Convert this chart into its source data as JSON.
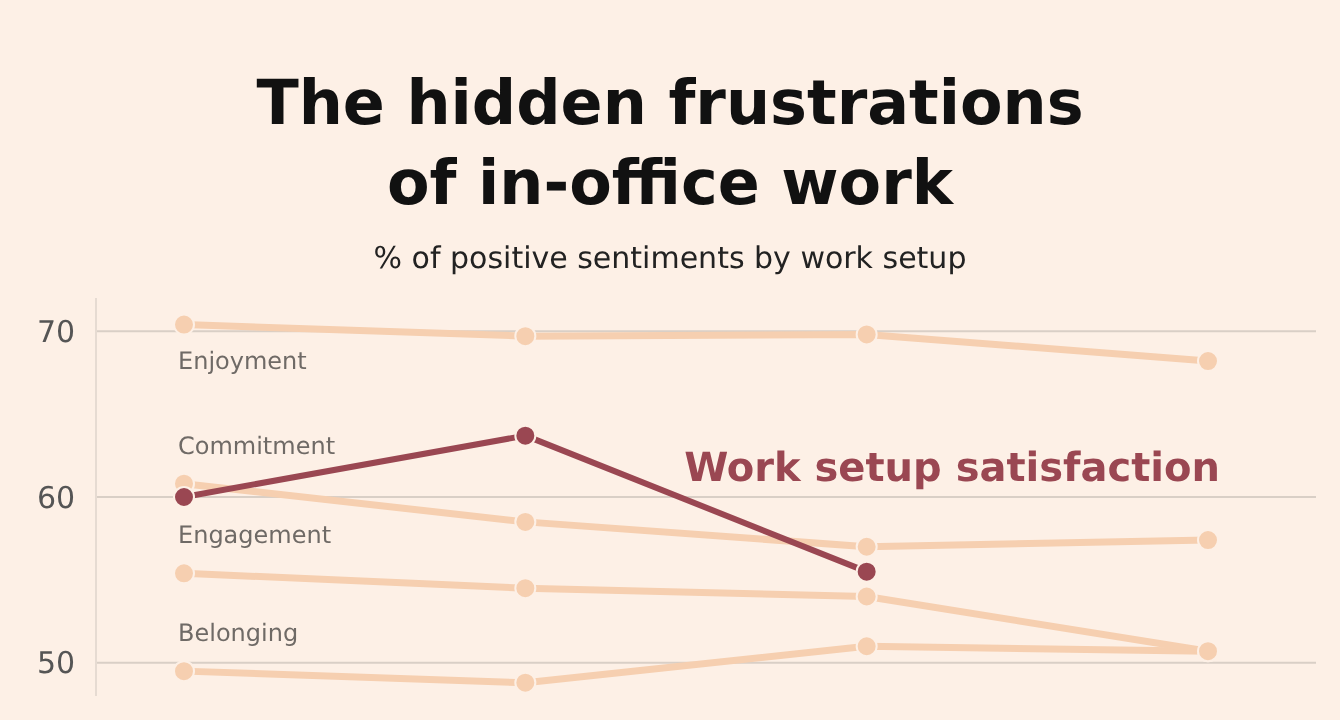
{
  "chart_data": {
    "type": "line",
    "title": "The hidden frustrations\nof in-office work",
    "subtitle": "% of positive sentiments by work setup",
    "categories": [
      null,
      null,
      null,
      null
    ],
    "series": [
      {
        "name": "Work setup satisfaction",
        "color": "#9a4752",
        "values": [
          60,
          63.7,
          55.5,
          null
        ]
      },
      {
        "name": "Enjoyment",
        "color": "#f6cfb0",
        "values": [
          70.4,
          69.7,
          69.8,
          68.2
        ]
      },
      {
        "name": "Commitment",
        "color": "#f6cfb0",
        "values": [
          60.8,
          58.5,
          57,
          57.4
        ]
      },
      {
        "name": "Engagement",
        "color": "#f6cfb0",
        "values": [
          55.4,
          54.5,
          54,
          50.7
        ]
      },
      {
        "name": "Belonging",
        "color": "#f6cfb0",
        "values": [
          49.5,
          48.8,
          51,
          50.7
        ]
      }
    ],
    "ylim": [
      48,
      72
    ],
    "yticks": [
      50,
      60,
      70
    ],
    "grid": "y",
    "marker": "circle",
    "line_style": "solid"
  }
}
